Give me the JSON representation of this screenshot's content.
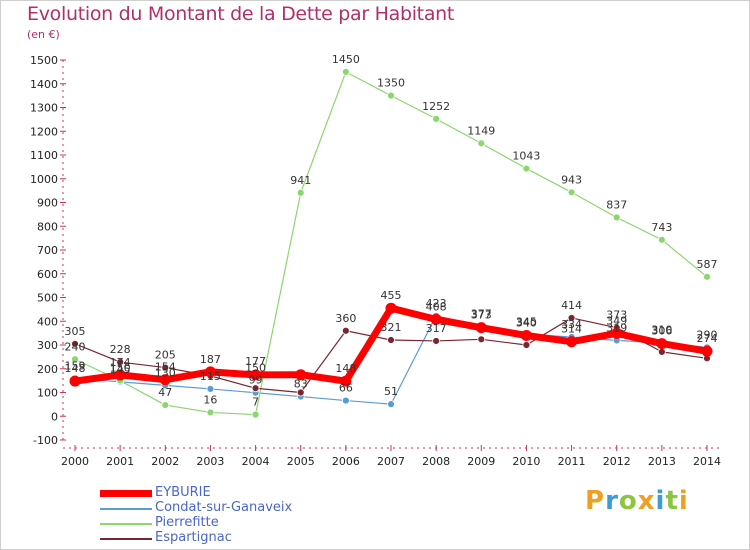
{
  "header": {
    "title": "Evolution du Montant de la Dette par Habitant",
    "unit": "(en €)"
  },
  "logo": {
    "chars": [
      "P",
      "r",
      "o",
      "x",
      "i",
      "t",
      "i"
    ],
    "colors": [
      "#f0a020",
      "#3c9cd6",
      "#8cc63e",
      "#f0a020",
      "#3c9cd6",
      "#8cc63e",
      "#f0a020"
    ]
  },
  "chart_data": {
    "type": "line",
    "title": "Evolution du Montant de la Dette par Habitant",
    "ylabel": "(en €)",
    "xlabel": "",
    "x": [
      "2000",
      "2001",
      "2002",
      "2003",
      "2004",
      "2005",
      "2006",
      "2007",
      "2008",
      "2009",
      "2010",
      "2011",
      "2012",
      "2013",
      "2014"
    ],
    "ylim": [
      -100,
      1500
    ],
    "yticks": [
      -100,
      0,
      100,
      200,
      300,
      400,
      500,
      600,
      700,
      800,
      900,
      1000,
      1100,
      1200,
      1300,
      1400,
      1500
    ],
    "grid": false,
    "legend": "bottom-left",
    "series": [
      {
        "name": "EYBURIE",
        "color": "#ff0000",
        "width": 7,
        "marker": 5,
        "values": [
          148,
          174,
          154,
          187,
          174,
          175,
          148,
          455,
          408,
          373,
          340,
          314,
          349,
          306,
          274
        ],
        "labels": [
          "148",
          "174",
          "154",
          "187",
          "",
          "",
          "148",
          "455",
          "408",
          "373",
          "340",
          "314",
          "349",
          "306",
          "274"
        ]
      },
      {
        "name": "Condat-sur-Ganaveix",
        "color": "#5b9bd5",
        "width": 1.2,
        "marker": 3.5,
        "values": [
          159,
          145,
          130,
          115,
          99,
          83,
          66,
          51,
          423,
          377,
          345,
          334,
          319,
          310,
          290
        ],
        "labels": [
          "159",
          "145",
          "130",
          "115",
          "99",
          "83",
          "66",
          "51",
          "423",
          "377",
          "345",
          "334",
          "319",
          "310",
          "290"
        ]
      },
      {
        "name": "Pierrefitte",
        "color": "#8cd66e",
        "width": 1.2,
        "marker": 3.5,
        "values": [
          240,
          150,
          47,
          16,
          7,
          941,
          1450,
          1350,
          1252,
          1149,
          1043,
          943,
          837,
          743,
          587
        ],
        "labels": [
          "240",
          "150",
          "47",
          "16",
          "7",
          "941",
          "1450",
          "1350",
          "1252",
          "1149",
          "1043",
          "943",
          "837",
          "743",
          "587"
        ]
      },
      {
        "name": "Espartignac",
        "color": "#7a2630",
        "width": 1.2,
        "marker": 3.5,
        "values": [
          305,
          228,
          205,
          170,
          118,
          100,
          360,
          321,
          317,
          324,
          300,
          414,
          373,
          271,
          244
        ],
        "labels": [
          "305",
          "228",
          "205",
          "",
          "",
          "",
          "360",
          "321",
          "317",
          "",
          "",
          "414",
          "373",
          "",
          ""
        ]
      }
    ],
    "extra_labels": [
      {
        "x": "2004",
        "y": 177,
        "text": "177"
      },
      {
        "x": "2004",
        "y": 150,
        "text": "150"
      }
    ]
  }
}
